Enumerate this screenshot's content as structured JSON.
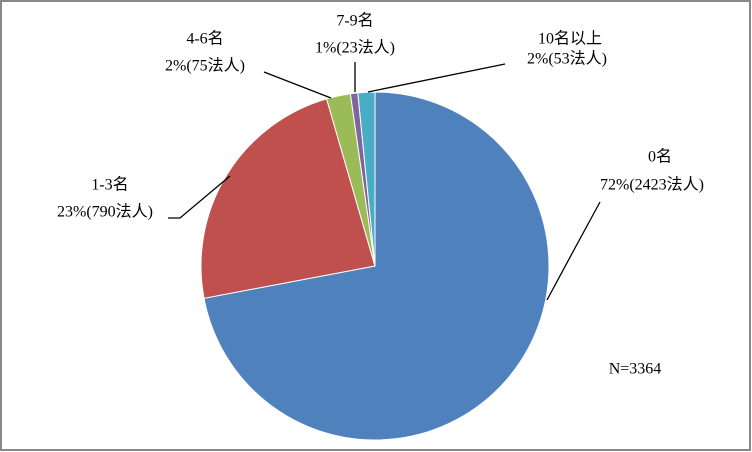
{
  "chart_data": {
    "type": "pie",
    "categories": [
      "0名",
      "1-3名",
      "4-6名",
      "7-9名",
      "10名以上"
    ],
    "values": [
      2423,
      790,
      75,
      23,
      53
    ],
    "value_labels": [
      "72%(2423法人)",
      "23%(790法人)",
      "2%(75法人)",
      "1%(23法人)",
      "2%(53法人)"
    ],
    "colors": [
      "#4f81bd",
      "#c0504d",
      "#9bbb59",
      "#8064a2",
      "#4bacc6"
    ],
    "annotation": "N=3364"
  }
}
